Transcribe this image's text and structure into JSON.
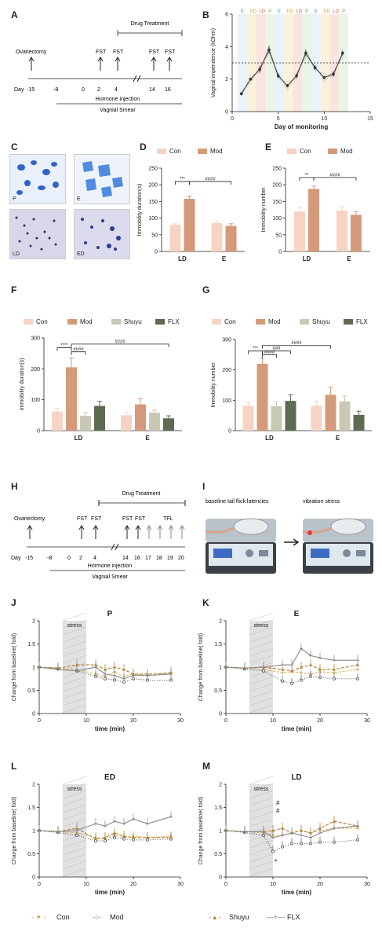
{
  "panel_labels": {
    "A": "A",
    "B": "B",
    "C": "C",
    "D": "D",
    "E": "E",
    "F": "F",
    "G": "G",
    "H": "H",
    "I": "I",
    "J": "J",
    "K": "K",
    "L": "L",
    "M": "M"
  },
  "timelineA": {
    "drug_treatment": "Drug Treatment",
    "ovariectomy": "Ovariectomy",
    "fst": "FST",
    "day_label": "Day",
    "days": [
      "-15",
      "-8",
      "0",
      "2",
      "4",
      "14",
      "16"
    ],
    "hormone": "Hormone injection",
    "smear": "Vagnial Smear"
  },
  "timelineH": {
    "drug_treatment": "Drug Treatment",
    "ovariectomy": "Ovariectomy",
    "fst": "FST",
    "tfl": "TFL",
    "day_label": "Day",
    "days": [
      "-15",
      "-8",
      "0",
      "2",
      "4",
      "14",
      "16",
      "17",
      "18",
      "19",
      "20"
    ],
    "hormone": "Hormone injection",
    "smear": "Vagnial Smear"
  },
  "panelI": {
    "baseline": "baseline tail flick latencies",
    "vibration": "vibration stress"
  },
  "micrographs": {
    "p": "P",
    "e": "E",
    "ld": "LD",
    "ed": "ED"
  },
  "colors": {
    "con": "#f7d3c4",
    "mod": "#d59a7a",
    "shuyu": "#c9c8b4",
    "flx": "#5f6a53",
    "estrous_bands": [
      "#e6f2fb",
      "#fbf1d8",
      "#fbe0dd",
      "#e8f4e3"
    ]
  },
  "chart_data": [
    {
      "id": "B",
      "type": "line",
      "ylabel": "Vaginal impendence (kOhm)",
      "xlabel": "Day of monitoring",
      "xlim": [
        0,
        15
      ],
      "ylim": [
        0,
        6
      ],
      "xticks": [
        0,
        5,
        10,
        15
      ],
      "yticks": [
        0,
        2,
        4,
        6
      ],
      "phase_labels": [
        "E",
        "ED",
        "LD",
        "P",
        "E",
        "ED",
        "LD",
        "P",
        "E",
        "ED",
        "LD",
        "P"
      ],
      "threshold": 3.0,
      "x": [
        1,
        2,
        3,
        4,
        5,
        6,
        7,
        8,
        9,
        10,
        11,
        12
      ],
      "values": [
        1.1,
        2.0,
        2.6,
        3.8,
        2.2,
        1.6,
        2.2,
        3.6,
        2.7,
        2.1,
        2.3,
        3.6
      ],
      "errors": [
        0.1,
        0.1,
        0.2,
        0.25,
        0.15,
        0.1,
        0.15,
        0.2,
        0.15,
        0.1,
        0.15,
        0.15
      ]
    },
    {
      "id": "D",
      "type": "bar",
      "ylabel": "Immobility duration(s)",
      "categories": [
        "LD",
        "E"
      ],
      "ylim": [
        0,
        250
      ],
      "yticks": [
        0,
        50,
        100,
        150,
        200,
        250
      ],
      "series": [
        {
          "name": "Con",
          "values": [
            80,
            85
          ],
          "errors": [
            3,
            5
          ]
        },
        {
          "name": "Mod",
          "values": [
            158,
            77
          ],
          "errors": [
            8,
            6
          ]
        }
      ],
      "sig": [
        "***",
        "####"
      ]
    },
    {
      "id": "E",
      "type": "bar",
      "ylabel": "Immobility number",
      "categories": [
        "LD",
        "E"
      ],
      "ylim": [
        0,
        250
      ],
      "yticks": [
        0,
        50,
        100,
        150,
        200,
        250
      ],
      "series": [
        {
          "name": "Con",
          "values": [
            120,
            123
          ],
          "errors": [
            12,
            12
          ]
        },
        {
          "name": "Mod",
          "values": [
            188,
            110
          ],
          "errors": [
            8,
            10
          ]
        }
      ],
      "sig": [
        "**",
        "####"
      ]
    },
    {
      "id": "F",
      "type": "bar",
      "ylabel": "Immobility duration(s)",
      "categories": [
        "LD",
        "E"
      ],
      "ylim": [
        0,
        300
      ],
      "yticks": [
        0,
        100,
        200,
        300
      ],
      "series": [
        {
          "name": "Con",
          "values": [
            62,
            50
          ],
          "errors": [
            10,
            8
          ]
        },
        {
          "name": "Mod",
          "values": [
            205,
            85
          ],
          "errors": [
            30,
            18
          ]
        },
        {
          "name": "Shuyu",
          "values": [
            48,
            58
          ],
          "errors": [
            10,
            8
          ]
        },
        {
          "name": "FLX",
          "values": [
            80,
            40
          ],
          "errors": [
            15,
            8
          ]
        }
      ],
      "sig": [
        "****",
        "####",
        "####"
      ]
    },
    {
      "id": "G",
      "type": "bar",
      "ylabel": "Immobility number",
      "categories": [
        "LD",
        "E"
      ],
      "ylim": [
        0,
        300
      ],
      "yticks": [
        0,
        100,
        200,
        300
      ],
      "series": [
        {
          "name": "Con",
          "values": [
            82,
            82
          ],
          "errors": [
            12,
            15
          ]
        },
        {
          "name": "Mod",
          "values": [
            220,
            118
          ],
          "errors": [
            18,
            25
          ]
        },
        {
          "name": "Shuyu",
          "values": [
            80,
            96
          ],
          "errors": [
            15,
            18
          ]
        },
        {
          "name": "FLX",
          "values": [
            98,
            52
          ],
          "errors": [
            20,
            12
          ]
        }
      ],
      "sig": [
        "***",
        "####",
        "###",
        "####"
      ]
    },
    {
      "id": "J",
      "type": "line",
      "title": "P",
      "ylabel": "Change from baseline( fold)",
      "xlabel": "time (min)",
      "xlim": [
        0,
        30
      ],
      "ylim": [
        0,
        2.0
      ],
      "xticks": [
        0,
        10,
        20,
        30
      ],
      "yticks": [
        0,
        0.5,
        1.0,
        1.5,
        2.0
      ],
      "stress_label": "stress",
      "x": [
        0,
        4,
        8,
        12,
        14,
        16,
        18,
        20,
        23,
        28
      ],
      "series": [
        {
          "name": "Con",
          "values": [
            1.0,
            0.98,
            0.95,
            0.85,
            0.8,
            0.9,
            0.8,
            0.85,
            0.82,
            0.88
          ]
        },
        {
          "name": "Mod",
          "values": [
            1.0,
            0.96,
            0.92,
            0.8,
            0.75,
            0.72,
            0.68,
            0.75,
            0.72,
            0.72
          ]
        },
        {
          "name": "Shuyu",
          "values": [
            1.0,
            0.98,
            1.05,
            1.05,
            0.95,
            1.0,
            0.95,
            0.85,
            0.85,
            0.88
          ]
        },
        {
          "name": "FLX",
          "values": [
            1.0,
            0.95,
            0.92,
            1.0,
            0.85,
            0.82,
            0.75,
            0.82,
            0.82,
            0.85
          ]
        }
      ]
    },
    {
      "id": "K",
      "type": "line",
      "title": "E",
      "ylabel": "Change from baseline( fold)",
      "xlabel": "time (min)",
      "xlim": [
        0,
        30
      ],
      "ylim": [
        0,
        2.0
      ],
      "xticks": [
        0,
        10,
        20,
        30
      ],
      "yticks": [
        0,
        0.5,
        1.0,
        1.5,
        2.0
      ],
      "stress_label": "stress",
      "x": [
        0,
        4,
        8,
        12,
        14,
        16,
        18,
        20,
        23,
        28
      ],
      "series": [
        {
          "name": "Con",
          "values": [
            1.0,
            0.98,
            0.95,
            0.88,
            0.9,
            0.88,
            0.85,
            0.9,
            0.88,
            0.95
          ]
        },
        {
          "name": "Mod",
          "values": [
            1.0,
            0.96,
            0.92,
            0.7,
            0.65,
            0.72,
            0.8,
            0.78,
            0.75,
            0.75
          ]
        },
        {
          "name": "Shuyu",
          "values": [
            1.0,
            0.98,
            1.0,
            0.95,
            0.92,
            1.0,
            1.05,
            0.95,
            0.95,
            1.05
          ]
        },
        {
          "name": "FLX",
          "values": [
            1.0,
            0.98,
            1.0,
            1.05,
            1.05,
            1.4,
            1.25,
            1.2,
            1.15,
            1.15
          ]
        }
      ]
    },
    {
      "id": "L",
      "type": "line",
      "title": "ED",
      "ylabel": "Change from baseline( fold)",
      "xlabel": "time (min)",
      "xlim": [
        0,
        30
      ],
      "ylim": [
        0,
        2.0
      ],
      "xticks": [
        0,
        10,
        20,
        30
      ],
      "yticks": [
        0,
        0.5,
        1.0,
        1.5,
        2.0
      ],
      "stress_label": "stress",
      "x": [
        0,
        4,
        8,
        12,
        14,
        16,
        18,
        20,
        23,
        28
      ],
      "series": [
        {
          "name": "Con",
          "values": [
            1.0,
            0.98,
            0.95,
            0.85,
            0.82,
            0.9,
            0.85,
            0.88,
            0.85,
            0.88
          ]
        },
        {
          "name": "Mod",
          "values": [
            1.0,
            0.96,
            0.9,
            0.78,
            0.78,
            0.85,
            0.82,
            0.8,
            0.8,
            0.82
          ]
        },
        {
          "name": "Shuyu",
          "values": [
            1.0,
            0.98,
            1.05,
            0.82,
            0.85,
            0.95,
            0.88,
            0.85,
            0.85,
            0.85
          ]
        },
        {
          "name": "FLX",
          "values": [
            1.0,
            0.98,
            1.0,
            1.15,
            1.1,
            1.2,
            1.15,
            1.25,
            1.15,
            1.3
          ]
        }
      ]
    },
    {
      "id": "M",
      "type": "line",
      "title": "LD",
      "ylabel": "Change from baseline( fold)",
      "xlabel": "time (min)",
      "xlim": [
        0,
        30
      ],
      "ylim": [
        0,
        2.0
      ],
      "xticks": [
        0,
        10,
        20,
        30
      ],
      "yticks": [
        0,
        0.5,
        1.0,
        1.5,
        2.0
      ],
      "stress_label": "stress",
      "x": [
        0,
        4,
        8,
        10,
        12,
        14,
        16,
        18,
        20,
        23,
        28
      ],
      "series": [
        {
          "name": "Con",
          "values": [
            1.0,
            0.98,
            0.95,
            0.9,
            0.9,
            0.95,
            1.0,
            0.95,
            1.0,
            1.05,
            1.05
          ]
        },
        {
          "name": "Mod",
          "values": [
            1.0,
            0.96,
            0.9,
            0.55,
            0.65,
            0.72,
            0.72,
            0.72,
            0.75,
            0.75,
            0.8
          ]
        },
        {
          "name": "Shuyu",
          "values": [
            1.0,
            0.98,
            0.98,
            1.0,
            1.05,
            0.95,
            1.0,
            0.95,
            1.05,
            1.2,
            1.1
          ]
        },
        {
          "name": "FLX",
          "values": [
            1.0,
            0.98,
            0.98,
            0.85,
            0.9,
            0.95,
            0.9,
            0.85,
            0.95,
            1.05,
            1.1
          ]
        }
      ],
      "sig": [
        "#",
        "#",
        "*"
      ]
    }
  ],
  "legend_bottom": [
    "Con",
    "Mod",
    "Shuyu",
    "FLX"
  ]
}
